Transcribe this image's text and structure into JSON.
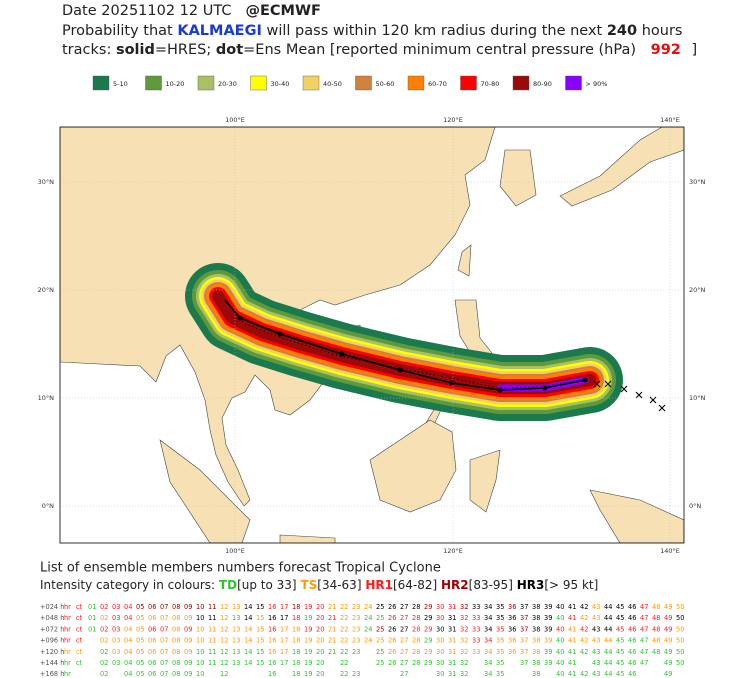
{
  "header": {
    "line1": [
      "Date 20251102 12 UTC",
      "@ECMWF"
    ],
    "line2": [
      "Probability that ",
      "KALMAEGI",
      " will pass within 120 km radius during the next ",
      "240",
      " hours"
    ],
    "line3": [
      "tracks: ",
      "solid",
      "=HRES; ",
      "dot",
      "=Ens Mean [reported minimum central pressure (hPa) ",
      "992",
      " ]"
    ]
  },
  "legend": [
    {
      "label": "5-10",
      "color": "#1b7a4d"
    },
    {
      "label": "10-20",
      "color": "#5e9a3c"
    },
    {
      "label": "20-30",
      "color": "#a9c163"
    },
    {
      "label": "30-40",
      "color": "#ffff00"
    },
    {
      "label": "40-50",
      "color": "#f2d063"
    },
    {
      "label": "50-60",
      "color": "#d0813f"
    },
    {
      "label": "60-70",
      "color": "#ff8000"
    },
    {
      "label": "70-80",
      "color": "#ff0000"
    },
    {
      "label": "80-90",
      "color": "#9b0a0a"
    },
    {
      "label": "> 90%",
      "color": "#8a00ff"
    }
  ],
  "map": {
    "lon_labels": [
      "100°E",
      "120°E",
      "140°E"
    ],
    "lat_labels": [
      "30°N",
      "20°N",
      "10°N",
      "0°N"
    ]
  },
  "footer": {
    "title": "List of ensemble members numbers forecast Tropical Cyclone",
    "intensity": [
      "Intensity category in colours: ",
      "TD",
      "[up to 33] ",
      "TS",
      "[34-63] ",
      "HR1",
      "[64-82] ",
      "HR2",
      "[83-95] ",
      "HR3",
      "[> 95 kt]"
    ],
    "intensity_colors": {
      "TD": "#2fc42f",
      "TS": "#ff9a00",
      "HR1": "#ff1a1a",
      "HR2": "#a00000",
      "HR3": "#000000"
    }
  },
  "table": {
    "rows": [
      {
        "label": "+024 h",
        "members": [
          "hr",
          "ct",
          "01",
          "02",
          "03",
          "04",
          "05",
          "06",
          "07",
          "08",
          "09",
          "10",
          "11",
          "12",
          "13",
          "14",
          "15",
          "16",
          "17",
          "18",
          "19",
          "20",
          "21",
          "22",
          "23",
          "24",
          "25",
          "26",
          "27",
          "28",
          "29",
          "30",
          "31",
          "32",
          "33",
          "34",
          "35",
          "36",
          "37",
          "38",
          "39",
          "40",
          "41",
          "42",
          "43",
          "44",
          "45",
          "46",
          "47",
          "48",
          "49",
          "50"
        ],
        "intensity": [
          "HR1",
          "HR1",
          "TD",
          "HR1",
          "HR1",
          "HR1",
          "HR2",
          "HR2",
          "HR2",
          "HR2",
          "HR2",
          "HR2",
          "HR2",
          "TS",
          "TS",
          "HR3",
          "HR3",
          "HR1",
          "HR1",
          "HR2",
          "HR1",
          "HR1",
          "TS",
          "TS",
          "TS",
          "TS",
          "HR3",
          "HR3",
          "HR3",
          "HR3",
          "HR2",
          "HR1",
          "HR1",
          "HR2",
          "HR3",
          "HR3",
          "HR3",
          "HR2",
          "HR3",
          "HR3",
          "HR3",
          "HR3",
          "HR3",
          "HR3",
          "TS",
          "HR3",
          "HR3",
          "HR3",
          "HR1",
          "TS",
          "TS",
          "TS"
        ]
      },
      {
        "label": "+048 h",
        "members": [
          "hr",
          "ct",
          "01",
          "02",
          "03",
          "04",
          "05",
          "06",
          "07",
          "08",
          "09",
          "10",
          "11",
          "12",
          "13",
          "14",
          "15",
          "16",
          "17",
          "18",
          "19",
          "20",
          "21",
          "22",
          "23",
          "24",
          "25",
          "26",
          "27",
          "28",
          "29",
          "30",
          "31",
          "32",
          "33",
          "34",
          "35",
          "36",
          "37",
          "38",
          "39",
          "40",
          "41",
          "42",
          "43",
          "44",
          "45",
          "46",
          "47",
          "48",
          "49",
          "50"
        ],
        "intensity": [
          "HR1",
          "HR1",
          "TD",
          "TS",
          "HR1",
          "HR1",
          "TS",
          "TS",
          "TS",
          "TS",
          "TS",
          "HR3",
          "HR3",
          "TS",
          "TD",
          "HR3",
          "TS",
          "HR3",
          "HR3",
          "HR1",
          "TD",
          "HR1",
          "HR1",
          "TS",
          "TS",
          "TD",
          "TD",
          "HR1",
          "HR1",
          "HR1",
          "HR3",
          "HR1",
          "HR3",
          "HR1",
          "HR1",
          "HR3",
          "HR3",
          "HR3",
          "HR2",
          "HR3",
          "HR3",
          "TD",
          "HR1",
          "TS",
          "TS",
          "HR3",
          "HR3",
          "HR3",
          "HR1",
          "HR1",
          "HR1",
          "HR3"
        ]
      },
      {
        "label": "+072 h",
        "members": [
          "hr",
          "ct",
          "01",
          "02",
          "03",
          "04",
          "05",
          "06",
          "07",
          "08",
          "09",
          "10",
          "11",
          "12",
          "13",
          "14",
          "15",
          "16",
          "17",
          "18",
          "19",
          "20",
          "21",
          "22",
          "23",
          "24",
          "25",
          "26",
          "27",
          "28",
          "29",
          "30",
          "31",
          "32",
          "33",
          "34",
          "35",
          "36",
          "37",
          "38",
          "39",
          "40",
          "41",
          "42",
          "43",
          "44",
          "45",
          "46",
          "47",
          "48",
          "49",
          "50"
        ],
        "intensity": [
          "HR1",
          "HR1",
          "TD",
          "HR1",
          "HR1",
          "TS",
          "TS",
          "HR1",
          "HR1",
          "TS",
          "HR1",
          "TS",
          "TS",
          "TS",
          "TS",
          "TS",
          "TS",
          "HR1",
          "TS",
          "TS",
          "HR1",
          "HR1",
          "TS",
          "TS",
          "TS",
          "TD",
          "HR2",
          "HR3",
          "HR3",
          "HR1",
          "HR1",
          "HR3",
          "HR3",
          "HR1",
          "HR1",
          "HR3",
          "HR1",
          "HR3",
          "HR2",
          "HR3",
          "HR3",
          "HR1",
          "TS",
          "HR1",
          "HR3",
          "HR3",
          "HR1",
          "HR1",
          "HR1",
          "HR1",
          "HR1",
          "TS"
        ]
      },
      {
        "label": "+096 h",
        "members": [
          "hr",
          "ct",
          "02",
          "03",
          "04",
          "05",
          "06",
          "07",
          "08",
          "09",
          "10",
          "11",
          "12",
          "13",
          "14",
          "15",
          "16",
          "17",
          "18",
          "19",
          "20",
          "21",
          "22",
          "23",
          "24",
          "25",
          "26",
          "27",
          "28",
          "29",
          "30",
          "31",
          "32",
          "33",
          "34",
          "35",
          "36",
          "37",
          "38",
          "39",
          "40",
          "41",
          "42",
          "43",
          "44",
          "45",
          "46",
          "47",
          "48",
          "49",
          "50"
        ],
        "intensity": [
          "HR1",
          "HR1",
          "TS",
          "TS",
          "TS",
          "TS",
          "TS",
          "TS",
          "TS",
          "TS",
          "TS",
          "TS",
          "TS",
          "TS",
          "TS",
          "TS",
          "TS",
          "TS",
          "TS",
          "TS",
          "TS",
          "TS",
          "TS",
          "TS",
          "TS",
          "TS",
          "TS",
          "TS",
          "TS",
          "TD",
          "TS",
          "TS",
          "TS",
          "HR1",
          "HR1",
          "TS",
          "TS",
          "TS",
          "TS",
          "TS",
          "TD",
          "TS",
          "TS",
          "TS",
          "TS",
          "TD",
          "TD",
          "TD",
          "TS",
          "TS",
          "TS"
        ]
      },
      {
        "label": "+120 h",
        "members": [
          "hr",
          "ct",
          "02",
          "03",
          "04",
          "05",
          "06",
          "07",
          "08",
          "09",
          "10",
          "11",
          "12",
          "13",
          "14",
          "15",
          "16",
          "17",
          "18",
          "19",
          "20",
          "21",
          "22",
          "23",
          "25",
          "26",
          "27",
          "28",
          "29",
          "30",
          "31",
          "32",
          "33",
          "34",
          "35",
          "36",
          "37",
          "38",
          "39",
          "40",
          "41",
          "42",
          "43",
          "44",
          "45",
          "46",
          "47",
          "48",
          "49",
          "50"
        ],
        "intensity": [
          "TS",
          "TS",
          "TD",
          "TS",
          "TS",
          "TS",
          "TS",
          "TS",
          "TS",
          "TS",
          "TD",
          "TD",
          "TD",
          "TD",
          "TD",
          "TD",
          "TS",
          "TS",
          "TD",
          "TD",
          "TD",
          "TD",
          "TD",
          "TD",
          "TD",
          "TS",
          "TS",
          "TS",
          "TS",
          "TS",
          "TS",
          "TS",
          "TS",
          "TS",
          "TS",
          "TS",
          "TS",
          "TS",
          "TD",
          "TD",
          "TD",
          "TD",
          "TD",
          "TD",
          "TD",
          "TD",
          "TD",
          "TD",
          "TD",
          "TD"
        ]
      },
      {
        "label": "+144 h",
        "members": [
          "hr",
          "ct",
          "02",
          "03",
          "04",
          "05",
          "06",
          "07",
          "08",
          "09",
          "10",
          "11",
          "12",
          "13",
          "14",
          "15",
          "16",
          "17",
          "18",
          "19",
          "20",
          "22",
          "25",
          "26",
          "27",
          "28",
          "29",
          "30",
          "31",
          "32",
          "34",
          "35",
          "37",
          "38",
          "39",
          "40",
          "41",
          "43",
          "44",
          "45",
          "46",
          "47",
          "49",
          "50"
        ],
        "intensity": [
          "TD",
          "TD",
          "TD",
          "TD",
          "TD",
          "TD",
          "TD",
          "TD",
          "TD",
          "TD",
          "TD",
          "TD",
          "TD",
          "TD",
          "TD",
          "TD",
          "TD",
          "TD",
          "TD",
          "TD",
          "TD",
          "TD",
          "TD",
          "TD",
          "TD",
          "TD",
          "TD",
          "TD",
          "TD",
          "TD",
          "TD",
          "TD",
          "TD",
          "TD",
          "TD",
          "TD",
          "TD",
          "TD",
          "TD",
          "TD",
          "TD",
          "TD",
          "TD",
          "TD"
        ]
      },
      {
        "label": "+168 h",
        "members": [
          "hr",
          "02",
          "04",
          "05",
          "06",
          "07",
          "08",
          "09",
          "10",
          "12",
          "16",
          "18",
          "19",
          "20",
          "22",
          "23",
          "27",
          "30",
          "31",
          "32",
          "34",
          "35",
          "38",
          "40",
          "41",
          "42",
          "43",
          "44",
          "45",
          "46",
          "49"
        ],
        "intensity": [
          "TD",
          "TD",
          "TD",
          "TD",
          "TD",
          "TD",
          "TD",
          "TD",
          "TD",
          "TD",
          "TD",
          "TD",
          "TD",
          "TD",
          "TD",
          "TD",
          "TD",
          "TD",
          "TD",
          "TD",
          "TD",
          "TD",
          "TD",
          "TD",
          "TD",
          "TD",
          "TD",
          "TD",
          "TD",
          "TD",
          "TD"
        ]
      }
    ]
  }
}
